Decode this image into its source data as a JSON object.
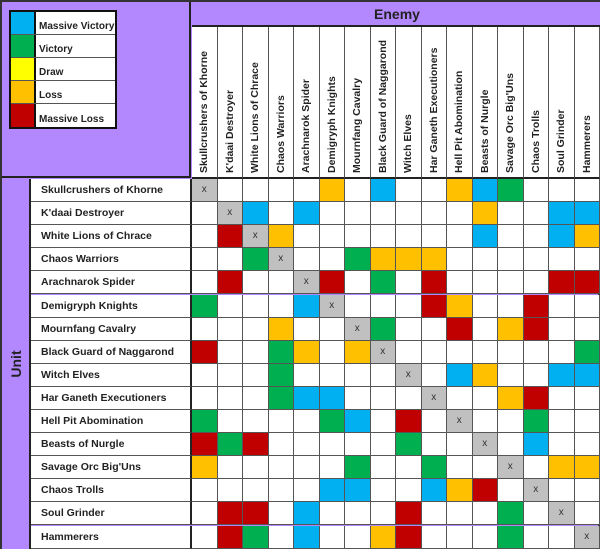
{
  "legend": [
    {
      "code": "B",
      "label": "Massive Victory",
      "color": "#00b0f0"
    },
    {
      "code": "G",
      "label": "Victory",
      "color": "#00b050"
    },
    {
      "code": "Y",
      "label": "Draw",
      "color": "#ffff00"
    },
    {
      "code": "O",
      "label": "Loss",
      "color": "#ffc000"
    },
    {
      "code": "R",
      "label": "Massive Loss",
      "color": "#c00000"
    }
  ],
  "self_color": "#c0c0c0",
  "self_mark": "x",
  "enemy_label": "Enemy",
  "unit_label": "Unit",
  "chart_data": {
    "type": "heatmap",
    "xlabel": "Enemy",
    "ylabel": "Unit",
    "categories": [
      "Skullcrushers of Khorne",
      "K'daai Destroyer",
      "White Lions of Chrace",
      "Chaos Warriors",
      "Arachnarok Spider",
      "Demigryph Knights",
      "Mournfang Cavalry",
      "Black Guard of Naggarond",
      "Witch Elves",
      "Har Ganeth Executioners",
      "Hell Pit Abomination",
      "Beasts of Nurgle",
      "Savage Orc Big'Uns",
      "Chaos Trolls",
      "Soul Grinder",
      "Hammerers"
    ],
    "key": "B=Massive Victory, G=Victory, Y=Draw, O=Loss, R=Massive Loss, X=self, .=none",
    "rows": [
      "X....O.B..OBG...",
      ".XB.B......O..BB",
      ".RXO.......B..BO",
      "..GX..GOOO......",
      ".R..XR.G.R....RR",
      "G...BX...RO..R..",
      "...O..XG..R.OR..",
      "R..GO.OX.......G",
      "...G....X.BO..BB",
      "...GBB...X..OR..",
      "G....GB.R.X..G..",
      "RGR.....G..X.B..",
      "O.....G..G..X.OO",
      ".....BB..BOR.X..",
      ".RR.B...R...G.X.",
      ".RG.B..OR...G..X"
    ]
  }
}
